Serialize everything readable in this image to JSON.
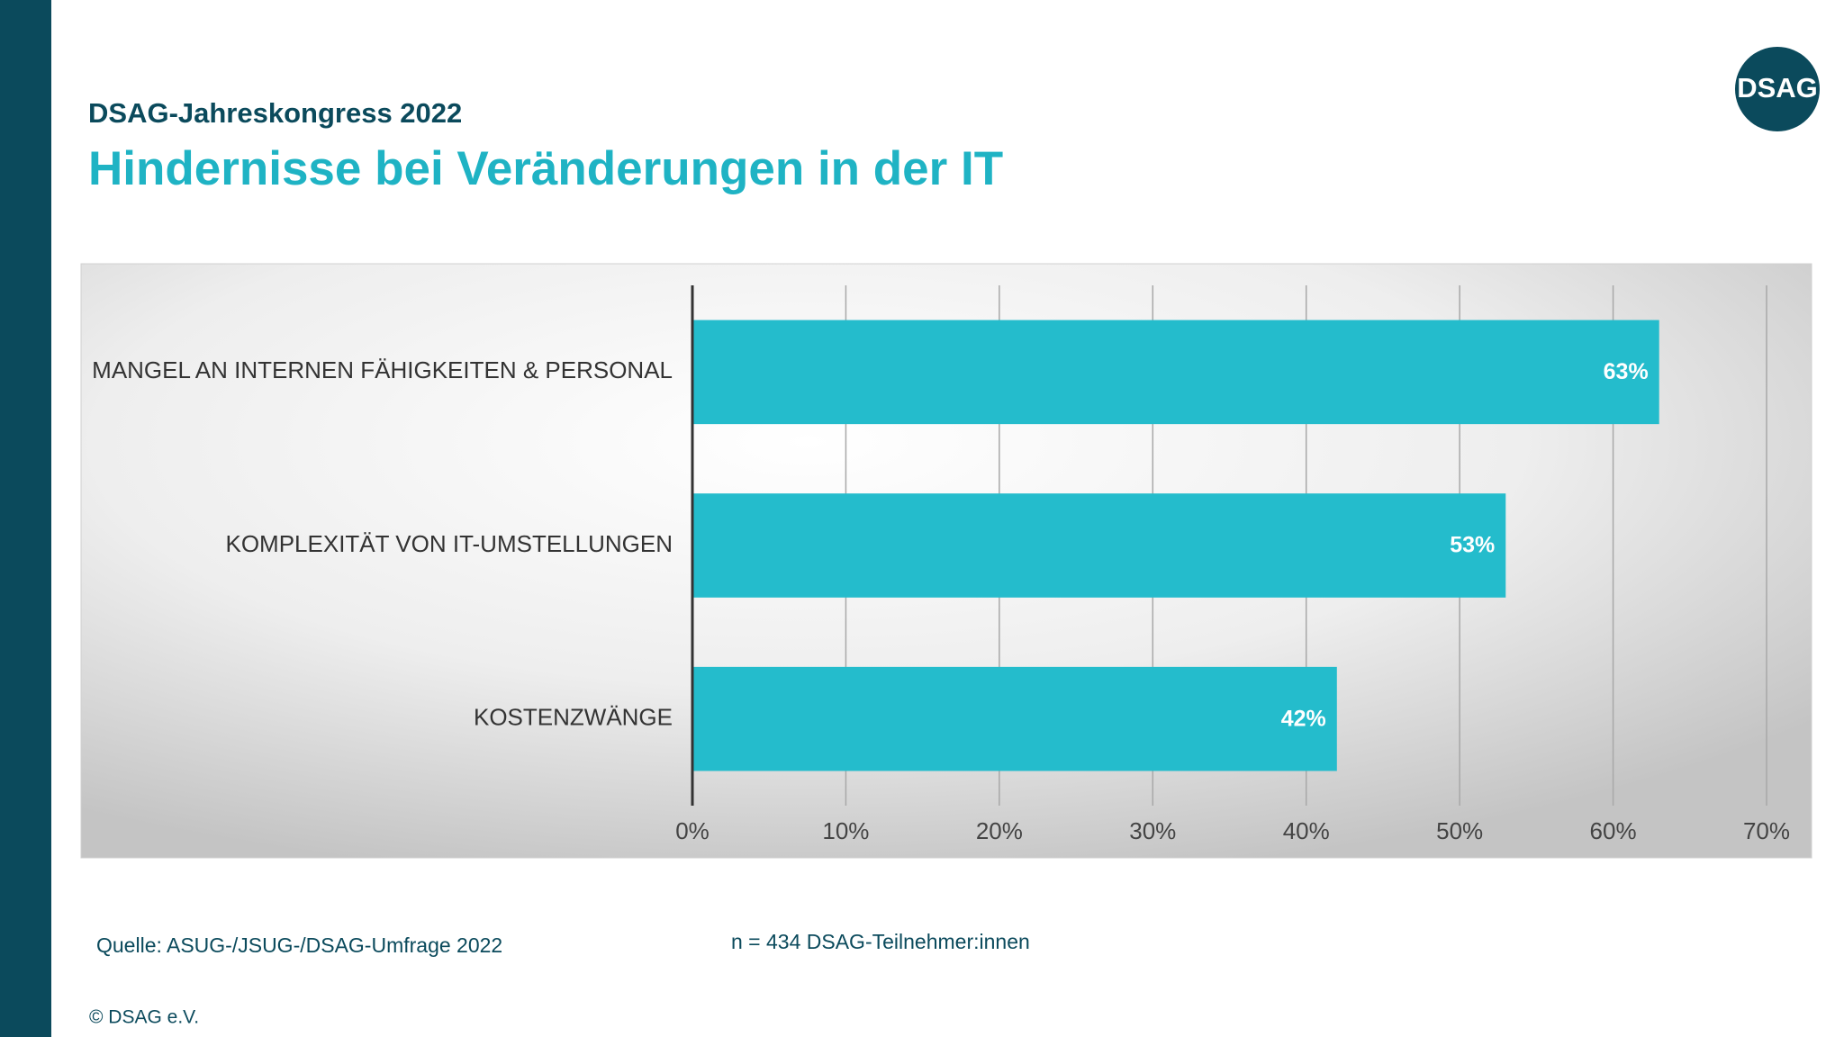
{
  "chart_data": {
    "type": "hbar",
    "subtitle": "DSAG-Jahreskongress 2022",
    "title": "Hindernisse bei Veränderungen in der IT",
    "categories": [
      "MANGEL AN INTERNEN FÄHIGKEITEN & PERSONAL",
      "KOMPLEXITÄT VON IT-UMSTELLUNGEN",
      "KOSTENZWÄNGE"
    ],
    "values": [
      63,
      53,
      42
    ],
    "value_labels": [
      "63%",
      "53%",
      "42%"
    ],
    "color": "#24bccc",
    "xlim": [
      0,
      70
    ],
    "xticks": [
      {
        "value": 0,
        "label": "0%"
      },
      {
        "value": 10,
        "label": "10%"
      },
      {
        "value": 20,
        "label": "20%"
      },
      {
        "value": 30,
        "label": "30%"
      },
      {
        "value": 40,
        "label": "40%"
      },
      {
        "value": 50,
        "label": "50%"
      },
      {
        "value": 60,
        "label": "60%"
      },
      {
        "value": 70,
        "label": "70%"
      }
    ],
    "grid": true
  },
  "logo": "DSAG",
  "source": "Quelle: ASUG-/JSUG-/DSAG-Umfrage 2022",
  "note": "n = 434 DSAG-Teilnehmer:innen",
  "copyright": "© DSAG e.V."
}
